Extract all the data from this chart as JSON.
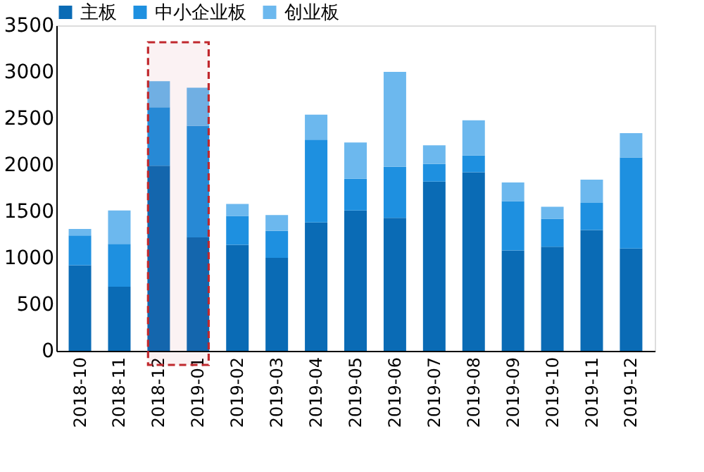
{
  "chart_data": {
    "type": "bar",
    "stacked": true,
    "categories": [
      "2018-10",
      "2018-11",
      "2018-12",
      "2019-01",
      "2019-02",
      "2019-03",
      "2019-04",
      "2019-05",
      "2019-06",
      "2019-07",
      "2019-08",
      "2019-09",
      "2019-10",
      "2019-11",
      "2019-12"
    ],
    "series": [
      {
        "name": "主板",
        "color": "#0a6bb5",
        "values": [
          920,
          690,
          1990,
          1220,
          1140,
          1000,
          1380,
          1510,
          1430,
          1820,
          1920,
          1080,
          1120,
          1300,
          1100
        ]
      },
      {
        "name": "中小企业板",
        "color": "#1e90e0",
        "values": [
          320,
          460,
          630,
          1200,
          310,
          290,
          890,
          340,
          550,
          190,
          180,
          530,
          300,
          290,
          980
        ]
      },
      {
        "name": "创业板",
        "color": "#6cb8ee",
        "values": [
          70,
          360,
          280,
          410,
          130,
          170,
          270,
          390,
          1020,
          200,
          380,
          200,
          130,
          250,
          260
        ]
      }
    ],
    "ylim": [
      0,
      3500
    ],
    "yticks": [
      0,
      500,
      1000,
      1500,
      2000,
      2500,
      3000,
      3500
    ],
    "grid": false,
    "legend": "top",
    "bands": [
      {
        "axis": "x",
        "from": "2018-12",
        "to": "2019-01",
        "color": "#c0282d"
      }
    ]
  }
}
